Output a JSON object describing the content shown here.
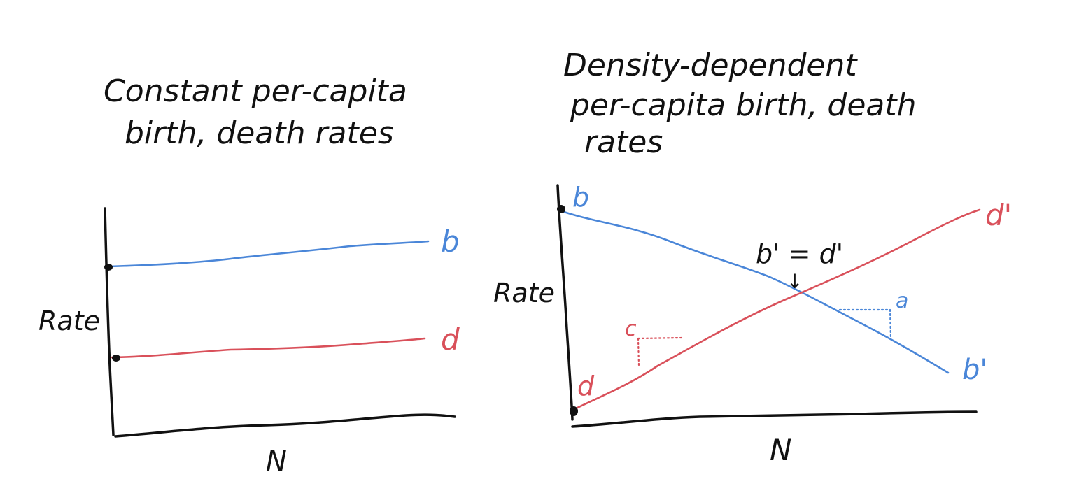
{
  "colors": {
    "ink": "#111111",
    "birth": "#4a86d8",
    "death": "#d9505a"
  },
  "left_panel": {
    "title_line1": "Constant per-capita",
    "title_line2": "birth, death rates",
    "y_axis_label": "Rate",
    "x_axis_label": "N",
    "birth_label": "b",
    "death_label": "d"
  },
  "right_panel": {
    "title_line1": "Density-dependent",
    "title_line2": "per-capita birth, death",
    "title_line3": "rates",
    "y_axis_label": "Rate",
    "x_axis_label": "N",
    "birth_start_label": "b",
    "birth_end_label": "b'",
    "death_start_label": "d",
    "death_end_label": "d'",
    "equilibrium_label": "b' = d'",
    "arrow_glyph": "↓",
    "death_slope_label": "c",
    "birth_slope_label": "a"
  }
}
